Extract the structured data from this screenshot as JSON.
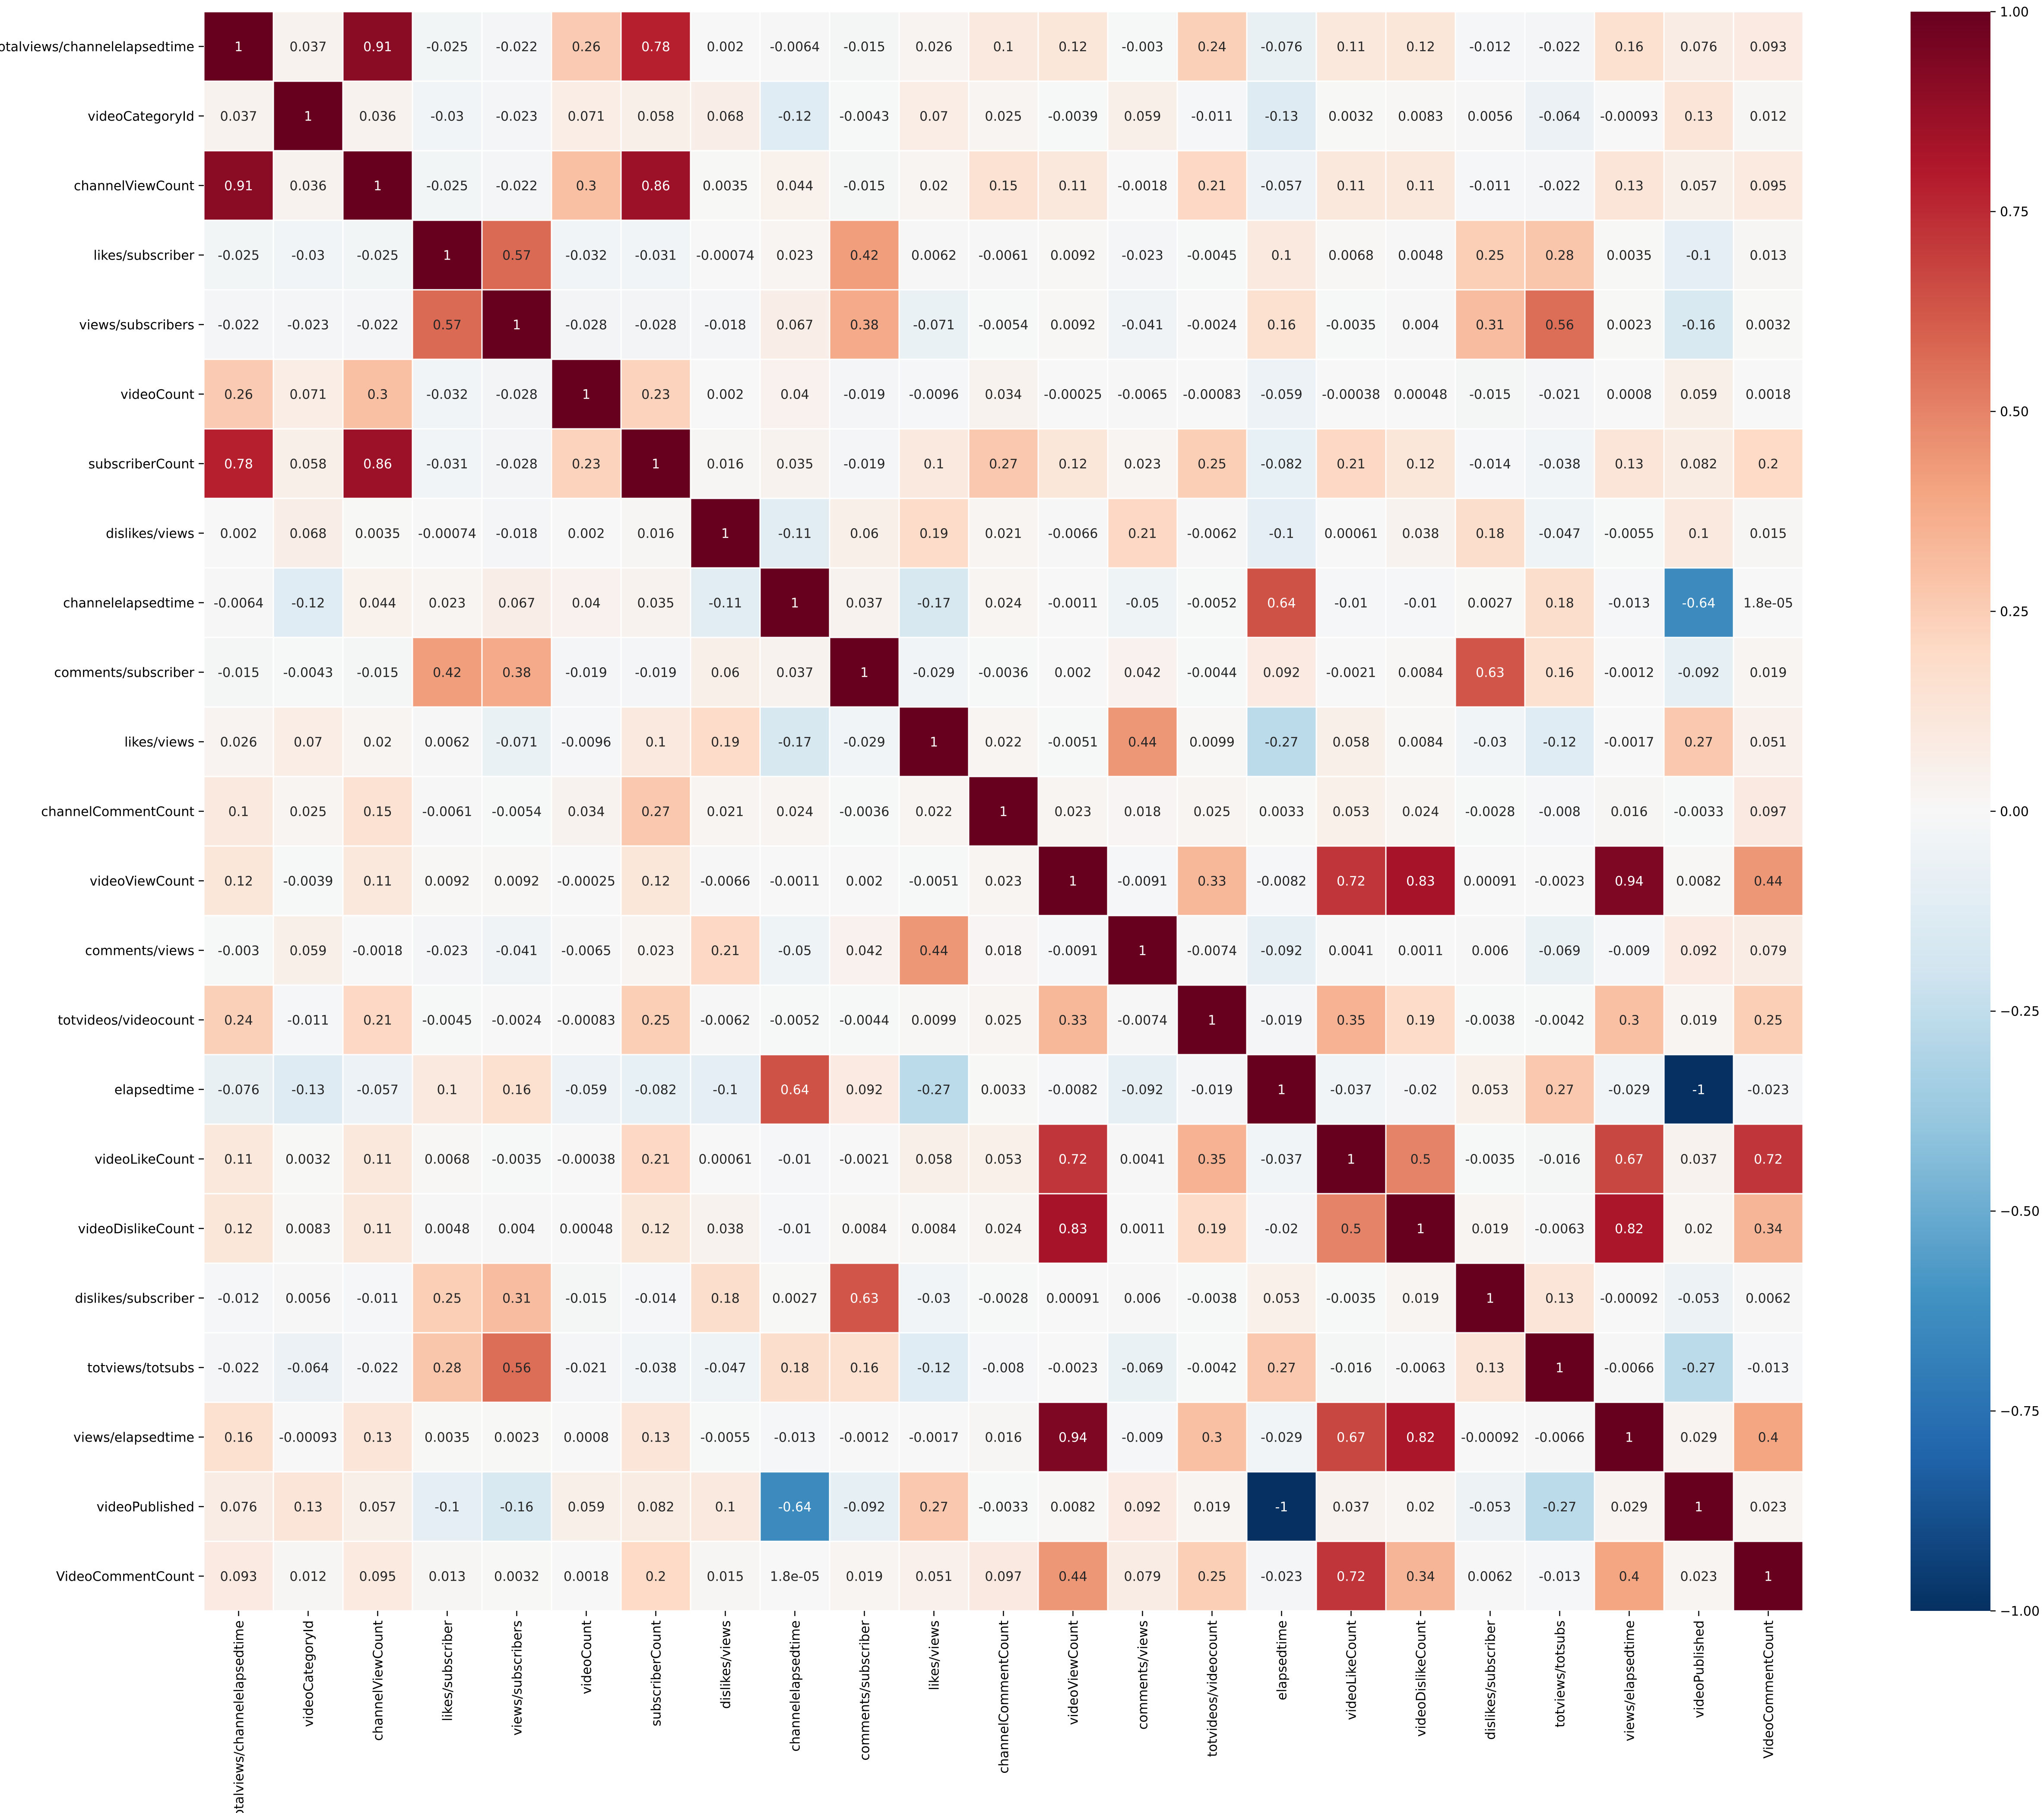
{
  "chart_data": {
    "type": "heatmap",
    "title": "",
    "xlabel": "",
    "ylabel": "",
    "labels": [
      "totalviews/channelelapsedtime",
      "videoCategoryId",
      "channelViewCount",
      "likes/subscriber",
      "views/subscribers",
      "videoCount",
      "subscriberCount",
      "dislikes/views",
      "channelelapsedtime",
      "comments/subscriber",
      "likes/views",
      "channelCommentCount",
      "videoViewCount",
      "comments/views",
      "totvideos/videocount",
      "elapsedtime",
      "videoLikeCount",
      "videoDislikeCount",
      "dislikes/subscriber",
      "totviews/totsubs",
      "views/elapsedtime",
      "videoPublished",
      "VideoCommentCount"
    ],
    "matrix": [
      [
        "1",
        "0.037",
        "0.91",
        "-0.025",
        "-0.022",
        "0.26",
        "0.78",
        "0.002",
        "-0.0064",
        "-0.015",
        "0.026",
        "0.1",
        "0.12",
        "-0.003",
        "0.24",
        "-0.076",
        "0.11",
        "0.12",
        "-0.012",
        "-0.022",
        "0.16",
        "0.076",
        "0.093"
      ],
      [
        "0.037",
        "1",
        "0.036",
        "-0.03",
        "-0.023",
        "0.071",
        "0.058",
        "0.068",
        "-0.12",
        "-0.0043",
        "0.07",
        "0.025",
        "-0.0039",
        "0.059",
        "-0.011",
        "-0.13",
        "0.0032",
        "0.0083",
        "0.0056",
        "-0.064",
        "-0.00093",
        "0.13",
        "0.012"
      ],
      [
        "0.91",
        "0.036",
        "1",
        "-0.025",
        "-0.022",
        "0.3",
        "0.86",
        "0.0035",
        "0.044",
        "-0.015",
        "0.02",
        "0.15",
        "0.11",
        "-0.0018",
        "0.21",
        "-0.057",
        "0.11",
        "0.11",
        "-0.011",
        "-0.022",
        "0.13",
        "0.057",
        "0.095"
      ],
      [
        "-0.025",
        "-0.03",
        "-0.025",
        "1",
        "0.57",
        "-0.032",
        "-0.031",
        "-0.00074",
        "0.023",
        "0.42",
        "0.0062",
        "-0.0061",
        "0.0092",
        "-0.023",
        "-0.0045",
        "0.1",
        "0.0068",
        "0.0048",
        "0.25",
        "0.28",
        "0.0035",
        "-0.1",
        "0.013"
      ],
      [
        "-0.022",
        "-0.023",
        "-0.022",
        "0.57",
        "1",
        "-0.028",
        "-0.028",
        "-0.018",
        "0.067",
        "0.38",
        "-0.071",
        "-0.0054",
        "0.0092",
        "-0.041",
        "-0.0024",
        "0.16",
        "-0.0035",
        "0.004",
        "0.31",
        "0.56",
        "0.0023",
        "-0.16",
        "0.0032"
      ],
      [
        "0.26",
        "0.071",
        "0.3",
        "-0.032",
        "-0.028",
        "1",
        "0.23",
        "0.002",
        "0.04",
        "-0.019",
        "-0.0096",
        "0.034",
        "-0.00025",
        "-0.0065",
        "-0.00083",
        "-0.059",
        "-0.00038",
        "0.00048",
        "-0.015",
        "-0.021",
        "0.0008",
        "0.059",
        "0.0018"
      ],
      [
        "0.78",
        "0.058",
        "0.86",
        "-0.031",
        "-0.028",
        "0.23",
        "1",
        "0.016",
        "0.035",
        "-0.019",
        "0.1",
        "0.27",
        "0.12",
        "0.023",
        "0.25",
        "-0.082",
        "0.21",
        "0.12",
        "-0.014",
        "-0.038",
        "0.13",
        "0.082",
        "0.2"
      ],
      [
        "0.002",
        "0.068",
        "0.0035",
        "-0.00074",
        "-0.018",
        "0.002",
        "0.016",
        "1",
        "-0.11",
        "0.06",
        "0.19",
        "0.021",
        "-0.0066",
        "0.21",
        "-0.0062",
        "-0.1",
        "0.00061",
        "0.038",
        "0.18",
        "-0.047",
        "-0.0055",
        "0.1",
        "0.015"
      ],
      [
        "-0.0064",
        "-0.12",
        "0.044",
        "0.023",
        "0.067",
        "0.04",
        "0.035",
        "-0.11",
        "1",
        "0.037",
        "-0.17",
        "0.024",
        "-0.0011",
        "-0.05",
        "-0.0052",
        "0.64",
        "-0.01",
        "-0.01",
        "0.0027",
        "0.18",
        "-0.013",
        "-0.64",
        "1.8e-05"
      ],
      [
        "-0.015",
        "-0.0043",
        "-0.015",
        "0.42",
        "0.38",
        "-0.019",
        "-0.019",
        "0.06",
        "0.037",
        "1",
        "-0.029",
        "-0.0036",
        "0.002",
        "0.042",
        "-0.0044",
        "0.092",
        "-0.0021",
        "0.0084",
        "0.63",
        "0.16",
        "-0.0012",
        "-0.092",
        "0.019"
      ],
      [
        "0.026",
        "0.07",
        "0.02",
        "0.0062",
        "-0.071",
        "-0.0096",
        "0.1",
        "0.19",
        "-0.17",
        "-0.029",
        "1",
        "0.022",
        "-0.0051",
        "0.44",
        "0.0099",
        "-0.27",
        "0.058",
        "0.0084",
        "-0.03",
        "-0.12",
        "-0.0017",
        "0.27",
        "0.051"
      ],
      [
        "0.1",
        "0.025",
        "0.15",
        "-0.0061",
        "-0.0054",
        "0.034",
        "0.27",
        "0.021",
        "0.024",
        "-0.0036",
        "0.022",
        "1",
        "0.023",
        "0.018",
        "0.025",
        "0.0033",
        "0.053",
        "0.024",
        "-0.0028",
        "-0.008",
        "0.016",
        "-0.0033",
        "0.097"
      ],
      [
        "0.12",
        "-0.0039",
        "0.11",
        "0.0092",
        "0.0092",
        "-0.00025",
        "0.12",
        "-0.0066",
        "-0.0011",
        "0.002",
        "-0.0051",
        "0.023",
        "1",
        "-0.0091",
        "0.33",
        "-0.0082",
        "0.72",
        "0.83",
        "0.00091",
        "-0.0023",
        "0.94",
        "0.0082",
        "0.44"
      ],
      [
        "-0.003",
        "0.059",
        "-0.0018",
        "-0.023",
        "-0.041",
        "-0.0065",
        "0.023",
        "0.21",
        "-0.05",
        "0.042",
        "0.44",
        "0.018",
        "-0.0091",
        "1",
        "-0.0074",
        "-0.092",
        "0.0041",
        "0.0011",
        "0.006",
        "-0.069",
        "-0.009",
        "0.092",
        "0.079"
      ],
      [
        "0.24",
        "-0.011",
        "0.21",
        "-0.0045",
        "-0.0024",
        "-0.00083",
        "0.25",
        "-0.0062",
        "-0.0052",
        "-0.0044",
        "0.0099",
        "0.025",
        "0.33",
        "-0.0074",
        "1",
        "-0.019",
        "0.35",
        "0.19",
        "-0.0038",
        "-0.0042",
        "0.3",
        "0.019",
        "0.25"
      ],
      [
        "-0.076",
        "-0.13",
        "-0.057",
        "0.1",
        "0.16",
        "-0.059",
        "-0.082",
        "-0.1",
        "0.64",
        "0.092",
        "-0.27",
        "0.0033",
        "-0.0082",
        "-0.092",
        "-0.019",
        "1",
        "-0.037",
        "-0.02",
        "0.053",
        "0.27",
        "-0.029",
        "-1",
        "-0.023"
      ],
      [
        "0.11",
        "0.0032",
        "0.11",
        "0.0068",
        "-0.0035",
        "-0.00038",
        "0.21",
        "0.00061",
        "-0.01",
        "-0.0021",
        "0.058",
        "0.053",
        "0.72",
        "0.0041",
        "0.35",
        "-0.037",
        "1",
        "0.5",
        "-0.0035",
        "-0.016",
        "0.67",
        "0.037",
        "0.72"
      ],
      [
        "0.12",
        "0.0083",
        "0.11",
        "0.0048",
        "0.004",
        "0.00048",
        "0.12",
        "0.038",
        "-0.01",
        "0.0084",
        "0.0084",
        "0.024",
        "0.83",
        "0.0011",
        "0.19",
        "-0.02",
        "0.5",
        "1",
        "0.019",
        "-0.0063",
        "0.82",
        "0.02",
        "0.34"
      ],
      [
        "-0.012",
        "0.0056",
        "-0.011",
        "0.25",
        "0.31",
        "-0.015",
        "-0.014",
        "0.18",
        "0.0027",
        "0.63",
        "-0.03",
        "-0.0028",
        "0.00091",
        "0.006",
        "-0.0038",
        "0.053",
        "-0.0035",
        "0.019",
        "1",
        "0.13",
        "-0.00092",
        "-0.053",
        "0.0062"
      ],
      [
        "-0.022",
        "-0.064",
        "-0.022",
        "0.28",
        "0.56",
        "-0.021",
        "-0.038",
        "-0.047",
        "0.18",
        "0.16",
        "-0.12",
        "-0.008",
        "-0.0023",
        "-0.069",
        "-0.0042",
        "0.27",
        "-0.016",
        "-0.0063",
        "0.13",
        "1",
        "-0.0066",
        "-0.27",
        "-0.013"
      ],
      [
        "0.16",
        "-0.00093",
        "0.13",
        "0.0035",
        "0.0023",
        "0.0008",
        "0.13",
        "-0.0055",
        "-0.013",
        "-0.0012",
        "-0.0017",
        "0.016",
        "0.94",
        "-0.009",
        "0.3",
        "-0.029",
        "0.67",
        "0.82",
        "-0.00092",
        "-0.0066",
        "1",
        "0.029",
        "0.4"
      ],
      [
        "0.076",
        "0.13",
        "0.057",
        "-0.1",
        "-0.16",
        "0.059",
        "0.082",
        "0.1",
        "-0.64",
        "-0.092",
        "0.27",
        "-0.0033",
        "0.0082",
        "0.092",
        "0.019",
        "-1",
        "0.037",
        "0.02",
        "-0.053",
        "-0.27",
        "0.029",
        "1",
        "0.023"
      ],
      [
        "0.093",
        "0.012",
        "0.095",
        "0.013",
        "0.0032",
        "0.0018",
        "0.2",
        "0.015",
        "1.8e-05",
        "0.019",
        "0.051",
        "0.097",
        "0.44",
        "0.079",
        "0.25",
        "-0.023",
        "0.72",
        "0.34",
        "0.0062",
        "-0.013",
        "0.4",
        "0.023",
        "1"
      ]
    ],
    "vmin": -1,
    "vmax": 1,
    "colormap": "RdBu_r",
    "colorbar": {
      "ticks": [
        "1.00",
        "0.75",
        "0.50",
        "0.25",
        "0.00",
        "−0.25",
        "−0.50",
        "−0.75",
        "−1.00"
      ],
      "tick_values": [
        1.0,
        0.75,
        0.5,
        0.25,
        0.0,
        -0.25,
        -0.5,
        -0.75,
        -1.0
      ]
    },
    "grid_lines": "white",
    "legend_placement": "right"
  }
}
